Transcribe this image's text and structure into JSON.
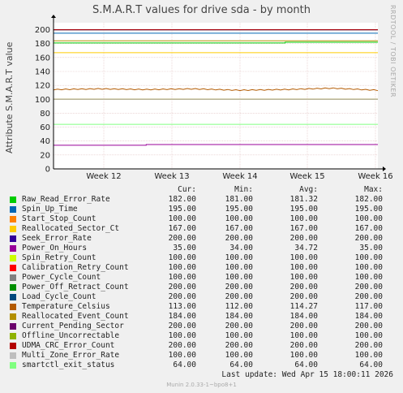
{
  "chart_data": {
    "type": "line",
    "title": "S.M.A.R.T values for drive sda - by month",
    "ylabel": "Attribute S.M.A.R.T value",
    "xlabel": "",
    "ylim": [
      0,
      210
    ],
    "yticks": [
      "0",
      "20",
      "40",
      "60",
      "80",
      "100",
      "120",
      "140",
      "160",
      "180",
      "200"
    ],
    "x_ticks": [
      "Week 12",
      "Week 13",
      "Week 14",
      "Week 15",
      "Week 16"
    ],
    "grid": true,
    "legend_headers": {
      "cur": "Cur:",
      "min": "Min:",
      "avg": "Avg:",
      "max": "Max:"
    },
    "series": [
      {
        "name": "Raw_Read_Error_Rate",
        "color": "#00cc00",
        "cur": "182.00",
        "min": "181.00",
        "avg": "181.32",
        "max": "182.00",
        "values": [
          181,
          181,
          181,
          181,
          181,
          182,
          182,
          182
        ]
      },
      {
        "name": "Spin_Up_Time",
        "color": "#0066b3",
        "cur": "195.00",
        "min": "195.00",
        "avg": "195.00",
        "max": "195.00",
        "values": [
          195,
          195,
          195,
          195,
          195,
          195,
          195,
          195
        ]
      },
      {
        "name": "Start_Stop_Count",
        "color": "#ff8000",
        "cur": "100.00",
        "min": "100.00",
        "avg": "100.00",
        "max": "100.00",
        "values": [
          100,
          100,
          100,
          100,
          100,
          100,
          100,
          100
        ]
      },
      {
        "name": "Reallocated_Sector_Ct",
        "color": "#ffcc00",
        "cur": "167.00",
        "min": "167.00",
        "avg": "167.00",
        "max": "167.00",
        "values": [
          167,
          167,
          167,
          167,
          167,
          167,
          167,
          167
        ]
      },
      {
        "name": "Seek_Error_Rate",
        "color": "#330099",
        "cur": "200.00",
        "min": "200.00",
        "avg": "200.00",
        "max": "200.00",
        "values": [
          200,
          200,
          200,
          200,
          200,
          200,
          200,
          200
        ]
      },
      {
        "name": "Power_On_Hours",
        "color": "#990099",
        "cur": "35.00",
        "min": "34.00",
        "avg": "34.72",
        "max": "35.00",
        "values": [
          34,
          34,
          35,
          35,
          35,
          35,
          35,
          35
        ]
      },
      {
        "name": "Spin_Retry_Count",
        "color": "#ccff00",
        "cur": "100.00",
        "min": "100.00",
        "avg": "100.00",
        "max": "100.00",
        "values": [
          100,
          100,
          100,
          100,
          100,
          100,
          100,
          100
        ]
      },
      {
        "name": "Calibration_Retry_Count",
        "color": "#ff0000",
        "cur": "100.00",
        "min": "100.00",
        "avg": "100.00",
        "max": "100.00",
        "values": [
          100,
          100,
          100,
          100,
          100,
          100,
          100,
          100
        ]
      },
      {
        "name": "Power_Cycle_Count",
        "color": "#808080",
        "cur": "100.00",
        "min": "100.00",
        "avg": "100.00",
        "max": "100.00",
        "values": [
          100,
          100,
          100,
          100,
          100,
          100,
          100,
          100
        ]
      },
      {
        "name": "Power_Off_Retract_Count",
        "color": "#008f00",
        "cur": "200.00",
        "min": "200.00",
        "avg": "200.00",
        "max": "200.00",
        "values": [
          200,
          200,
          200,
          200,
          200,
          200,
          200,
          200
        ]
      },
      {
        "name": "Load_Cycle_Count",
        "color": "#00487d",
        "cur": "200.00",
        "min": "200.00",
        "avg": "200.00",
        "max": "200.00",
        "values": [
          200,
          200,
          200,
          200,
          200,
          200,
          200,
          200
        ]
      },
      {
        "name": "Temperature_Celsius",
        "color": "#b35a00",
        "cur": "113.00",
        "min": "112.00",
        "avg": "114.27",
        "max": "117.00",
        "values": [
          114,
          115,
          114,
          115,
          113,
          114,
          116,
          113
        ]
      },
      {
        "name": "Reallocated_Event_Count",
        "color": "#b38f00",
        "cur": "184.00",
        "min": "184.00",
        "avg": "184.00",
        "max": "184.00",
        "values": [
          184,
          184,
          184,
          184,
          184,
          184,
          184,
          184
        ]
      },
      {
        "name": "Current_Pending_Sector",
        "color": "#6b006b",
        "cur": "200.00",
        "min": "200.00",
        "avg": "200.00",
        "max": "200.00",
        "values": [
          200,
          200,
          200,
          200,
          200,
          200,
          200,
          200
        ]
      },
      {
        "name": "Offline_Uncorrectable",
        "color": "#8fb300",
        "cur": "100.00",
        "min": "100.00",
        "avg": "100.00",
        "max": "100.00",
        "values": [
          100,
          100,
          100,
          100,
          100,
          100,
          100,
          100
        ]
      },
      {
        "name": "UDMA_CRC_Error_Count",
        "color": "#b30000",
        "cur": "200.00",
        "min": "200.00",
        "avg": "200.00",
        "max": "200.00",
        "values": [
          200,
          200,
          200,
          200,
          200,
          200,
          200,
          200
        ]
      },
      {
        "name": "Multi_Zone_Error_Rate",
        "color": "#bebebe",
        "cur": "100.00",
        "min": "100.00",
        "avg": "100.00",
        "max": "100.00",
        "values": [
          100,
          100,
          100,
          100,
          100,
          100,
          100,
          100
        ]
      },
      {
        "name": "smartctl_exit_status",
        "color": "#80ff80",
        "cur": "64.00",
        "min": "64.00",
        "avg": "64.00",
        "max": "64.00",
        "values": [
          64,
          64,
          64,
          64,
          64,
          64,
          64,
          64
        ]
      }
    ]
  },
  "side_label": "RRDTOOL / TOBI OETIKER",
  "last_update": "Last update:  Wed Apr 15 18:00:11 2026",
  "footer": "Munin 2.0.33-1~bpo8+1"
}
